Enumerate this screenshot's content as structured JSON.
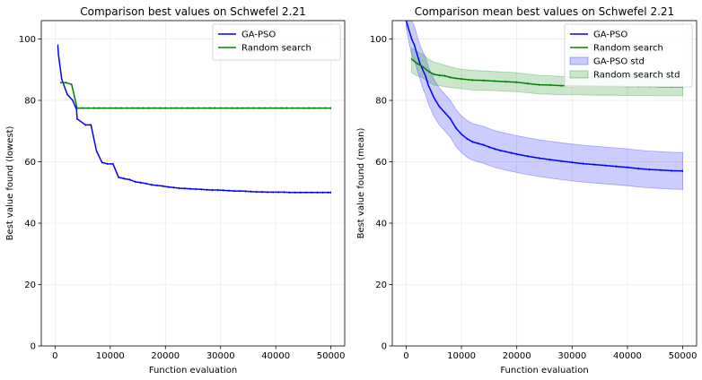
{
  "charts": [
    {
      "type": "line",
      "title": "Comparison best values on Schwefel 2.21",
      "xlabel": "Function evaluation",
      "ylabel": "Best value found (lowest)",
      "xlim": [
        -2500,
        52500
      ],
      "ylim": [
        0,
        106
      ],
      "xticks": [
        0,
        10000,
        20000,
        30000,
        40000,
        50000
      ],
      "yticks": [
        0,
        20,
        40,
        60,
        80,
        100
      ],
      "grid": true,
      "legend": "top-right",
      "series": [
        {
          "name": "GA-PSO",
          "color": "#0000ff",
          "x": [
            500,
            600,
            1200,
            2200,
            3200,
            3900,
            4000,
            5500,
            6500,
            7500,
            8500,
            9500,
            10500,
            11500,
            12500,
            13500,
            14500,
            15500,
            16500,
            17500,
            18500,
            19500,
            20500,
            21500,
            22500,
            23500,
            24500,
            25500,
            26500,
            27500,
            28500,
            29500,
            30500,
            31500,
            32500,
            33500,
            34500,
            35500,
            36500,
            37500,
            38500,
            39500,
            40500,
            41500,
            42500,
            43500,
            44500,
            45500,
            46500,
            47500,
            48500,
            49500,
            50000
          ],
          "y": [
            98,
            95,
            87,
            82,
            80,
            77,
            74,
            72,
            72,
            63.5,
            59.8,
            59.3,
            59.3,
            55,
            54.5,
            54.2,
            53.5,
            53.2,
            52.9,
            52.5,
            52.3,
            52.1,
            51.8,
            51.6,
            51.4,
            51.3,
            51.2,
            51.1,
            51,
            50.9,
            50.8,
            50.8,
            50.7,
            50.6,
            50.5,
            50.5,
            50.4,
            50.3,
            50.2,
            50.2,
            50.1,
            50.1,
            50.1,
            50.1,
            50,
            50,
            50,
            50,
            50,
            50,
            50,
            50,
            50
          ]
        },
        {
          "name": "Random search",
          "color": "#008000",
          "x": [
            1000,
            2000,
            3000,
            4000,
            5000,
            6000,
            7000,
            8000,
            9000,
            10000,
            11000,
            12000,
            13000,
            14000,
            15000,
            16000,
            17000,
            18000,
            19000,
            20000,
            21000,
            22000,
            23000,
            24000,
            25000,
            26000,
            27000,
            28000,
            29000,
            30000,
            31000,
            32000,
            33000,
            34000,
            35000,
            36000,
            37000,
            38000,
            39000,
            40000,
            41000,
            42000,
            43000,
            44000,
            45000,
            46000,
            47000,
            48000,
            49000,
            50000
          ],
          "y": [
            85.8,
            85.8,
            85.2,
            77.5,
            77.5,
            77.5,
            77.5,
            77.5,
            77.5,
            77.5,
            77.5,
            77.5,
            77.5,
            77.5,
            77.5,
            77.5,
            77.5,
            77.5,
            77.5,
            77.5,
            77.5,
            77.5,
            77.5,
            77.5,
            77.5,
            77.5,
            77.5,
            77.5,
            77.5,
            77.5,
            77.5,
            77.5,
            77.5,
            77.5,
            77.5,
            77.5,
            77.5,
            77.5,
            77.5,
            77.5,
            77.5,
            77.5,
            77.5,
            77.5,
            77.5,
            77.5,
            77.5,
            77.5,
            77.5,
            77.5
          ]
        }
      ]
    },
    {
      "type": "line",
      "title": "Comparison mean best values on Schwefel 2.21",
      "xlabel": "Function evaluation",
      "ylabel": "Best value found (mean)",
      "xlim": [
        -2500,
        52500
      ],
      "ylim": [
        0,
        106
      ],
      "xticks": [
        0,
        10000,
        20000,
        30000,
        40000,
        50000
      ],
      "yticks": [
        0,
        20,
        40,
        60,
        80,
        100
      ],
      "grid": true,
      "legend": "top-right",
      "series": [
        {
          "name": "GA-PSO",
          "color": "#0000ff",
          "x": [
            0,
            500,
            1000,
            1500,
            2000,
            2500,
            3000,
            3500,
            4000,
            5000,
            6000,
            7000,
            8000,
            9000,
            10000,
            11000,
            12000,
            13000,
            14000,
            15000,
            16000,
            17000,
            18000,
            19000,
            20000,
            22000,
            24000,
            26000,
            28000,
            30000,
            32000,
            34000,
            36000,
            38000,
            40000,
            42000,
            44000,
            46000,
            48000,
            50000
          ],
          "y": [
            106,
            103,
            100,
            98,
            95,
            92,
            90,
            88,
            85,
            81,
            78,
            76,
            74,
            71,
            69,
            67.5,
            66.5,
            66,
            65.5,
            64.8,
            64.2,
            63.7,
            63.3,
            62.9,
            62.5,
            61.8,
            61.2,
            60.7,
            60.2,
            59.8,
            59.4,
            59.1,
            58.8,
            58.5,
            58.2,
            57.8,
            57.5,
            57.3,
            57.1,
            57
          ]
        },
        {
          "name": "Random search",
          "color": "#008000",
          "x": [
            1000,
            2000,
            3000,
            4000,
            5000,
            6000,
            7000,
            8000,
            9000,
            10000,
            12000,
            14000,
            16000,
            18000,
            20000,
            22000,
            24000,
            26000,
            28000,
            30000,
            32000,
            34000,
            36000,
            38000,
            40000,
            42000,
            44000,
            46000,
            48000,
            50000
          ],
          "y": [
            93.5,
            92,
            91,
            89.5,
            88.5,
            88.2,
            88,
            87.5,
            87.2,
            87,
            86.6,
            86.5,
            86.3,
            86.1,
            85.9,
            85.5,
            85.1,
            85,
            84.8,
            84.8,
            84.7,
            84.7,
            84.6,
            84.6,
            84.5,
            84.5,
            84.5,
            84.4,
            84.4,
            84.4
          ]
        }
      ],
      "bands": [
        {
          "name": "GA-PSO std",
          "color": "#0000ff",
          "x": [
            0,
            500,
            1000,
            1500,
            2000,
            2500,
            3000,
            3500,
            4000,
            5000,
            6000,
            7000,
            8000,
            9000,
            10000,
            11000,
            12000,
            13000,
            14000,
            15000,
            16000,
            17000,
            18000,
            19000,
            20000,
            22000,
            24000,
            26000,
            28000,
            30000,
            32000,
            34000,
            36000,
            38000,
            40000,
            42000,
            44000,
            46000,
            48000,
            50000
          ],
          "upper": [
            108,
            108,
            106,
            104,
            101,
            98,
            96,
            94,
            91,
            87,
            84,
            82,
            80,
            77,
            75,
            73.5,
            72.5,
            72,
            71.5,
            70.8,
            70.2,
            69.7,
            69.3,
            68.9,
            68.5,
            67.8,
            67.2,
            66.7,
            66.2,
            65.8,
            65.4,
            65.1,
            64.8,
            64.5,
            64.2,
            63.8,
            63.5,
            63.3,
            63.1,
            63
          ],
          "lower": [
            104,
            99,
            95,
            93,
            90,
            87,
            84,
            82,
            79,
            75,
            72,
            70,
            68,
            65,
            63,
            61.5,
            60.5,
            60,
            59.5,
            58.8,
            58.2,
            57.7,
            57.3,
            56.9,
            56.5,
            55.8,
            55.2,
            54.7,
            54.2,
            53.8,
            53.4,
            53.1,
            52.8,
            52.5,
            52.2,
            51.8,
            51.5,
            51.3,
            51.1,
            51
          ]
        },
        {
          "name": "Random search std",
          "color": "#008000",
          "x": [
            1000,
            2000,
            3000,
            4000,
            5000,
            6000,
            7000,
            8000,
            9000,
            10000,
            12000,
            14000,
            16000,
            18000,
            20000,
            22000,
            24000,
            26000,
            28000,
            30000,
            32000,
            34000,
            36000,
            38000,
            40000,
            42000,
            44000,
            46000,
            48000,
            50000
          ],
          "upper": [
            97,
            96,
            95,
            93.5,
            92.5,
            92,
            91.5,
            91,
            90.5,
            90.2,
            89.8,
            89.6,
            89.4,
            89.2,
            89,
            88.6,
            88.2,
            88,
            87.8,
            87.7,
            87.6,
            87.6,
            87.5,
            87.5,
            87.4,
            87.4,
            87.4,
            87.3,
            87.3,
            87.3
          ],
          "lower": [
            89,
            88,
            87.5,
            86,
            85,
            84.8,
            84.5,
            84.2,
            84,
            83.8,
            83.4,
            83.3,
            83.2,
            83,
            82.8,
            82.5,
            82.1,
            82,
            81.8,
            81.8,
            81.8,
            81.7,
            81.7,
            81.7,
            81.6,
            81.6,
            81.6,
            81.5,
            81.5,
            81.5
          ]
        }
      ]
    }
  ]
}
